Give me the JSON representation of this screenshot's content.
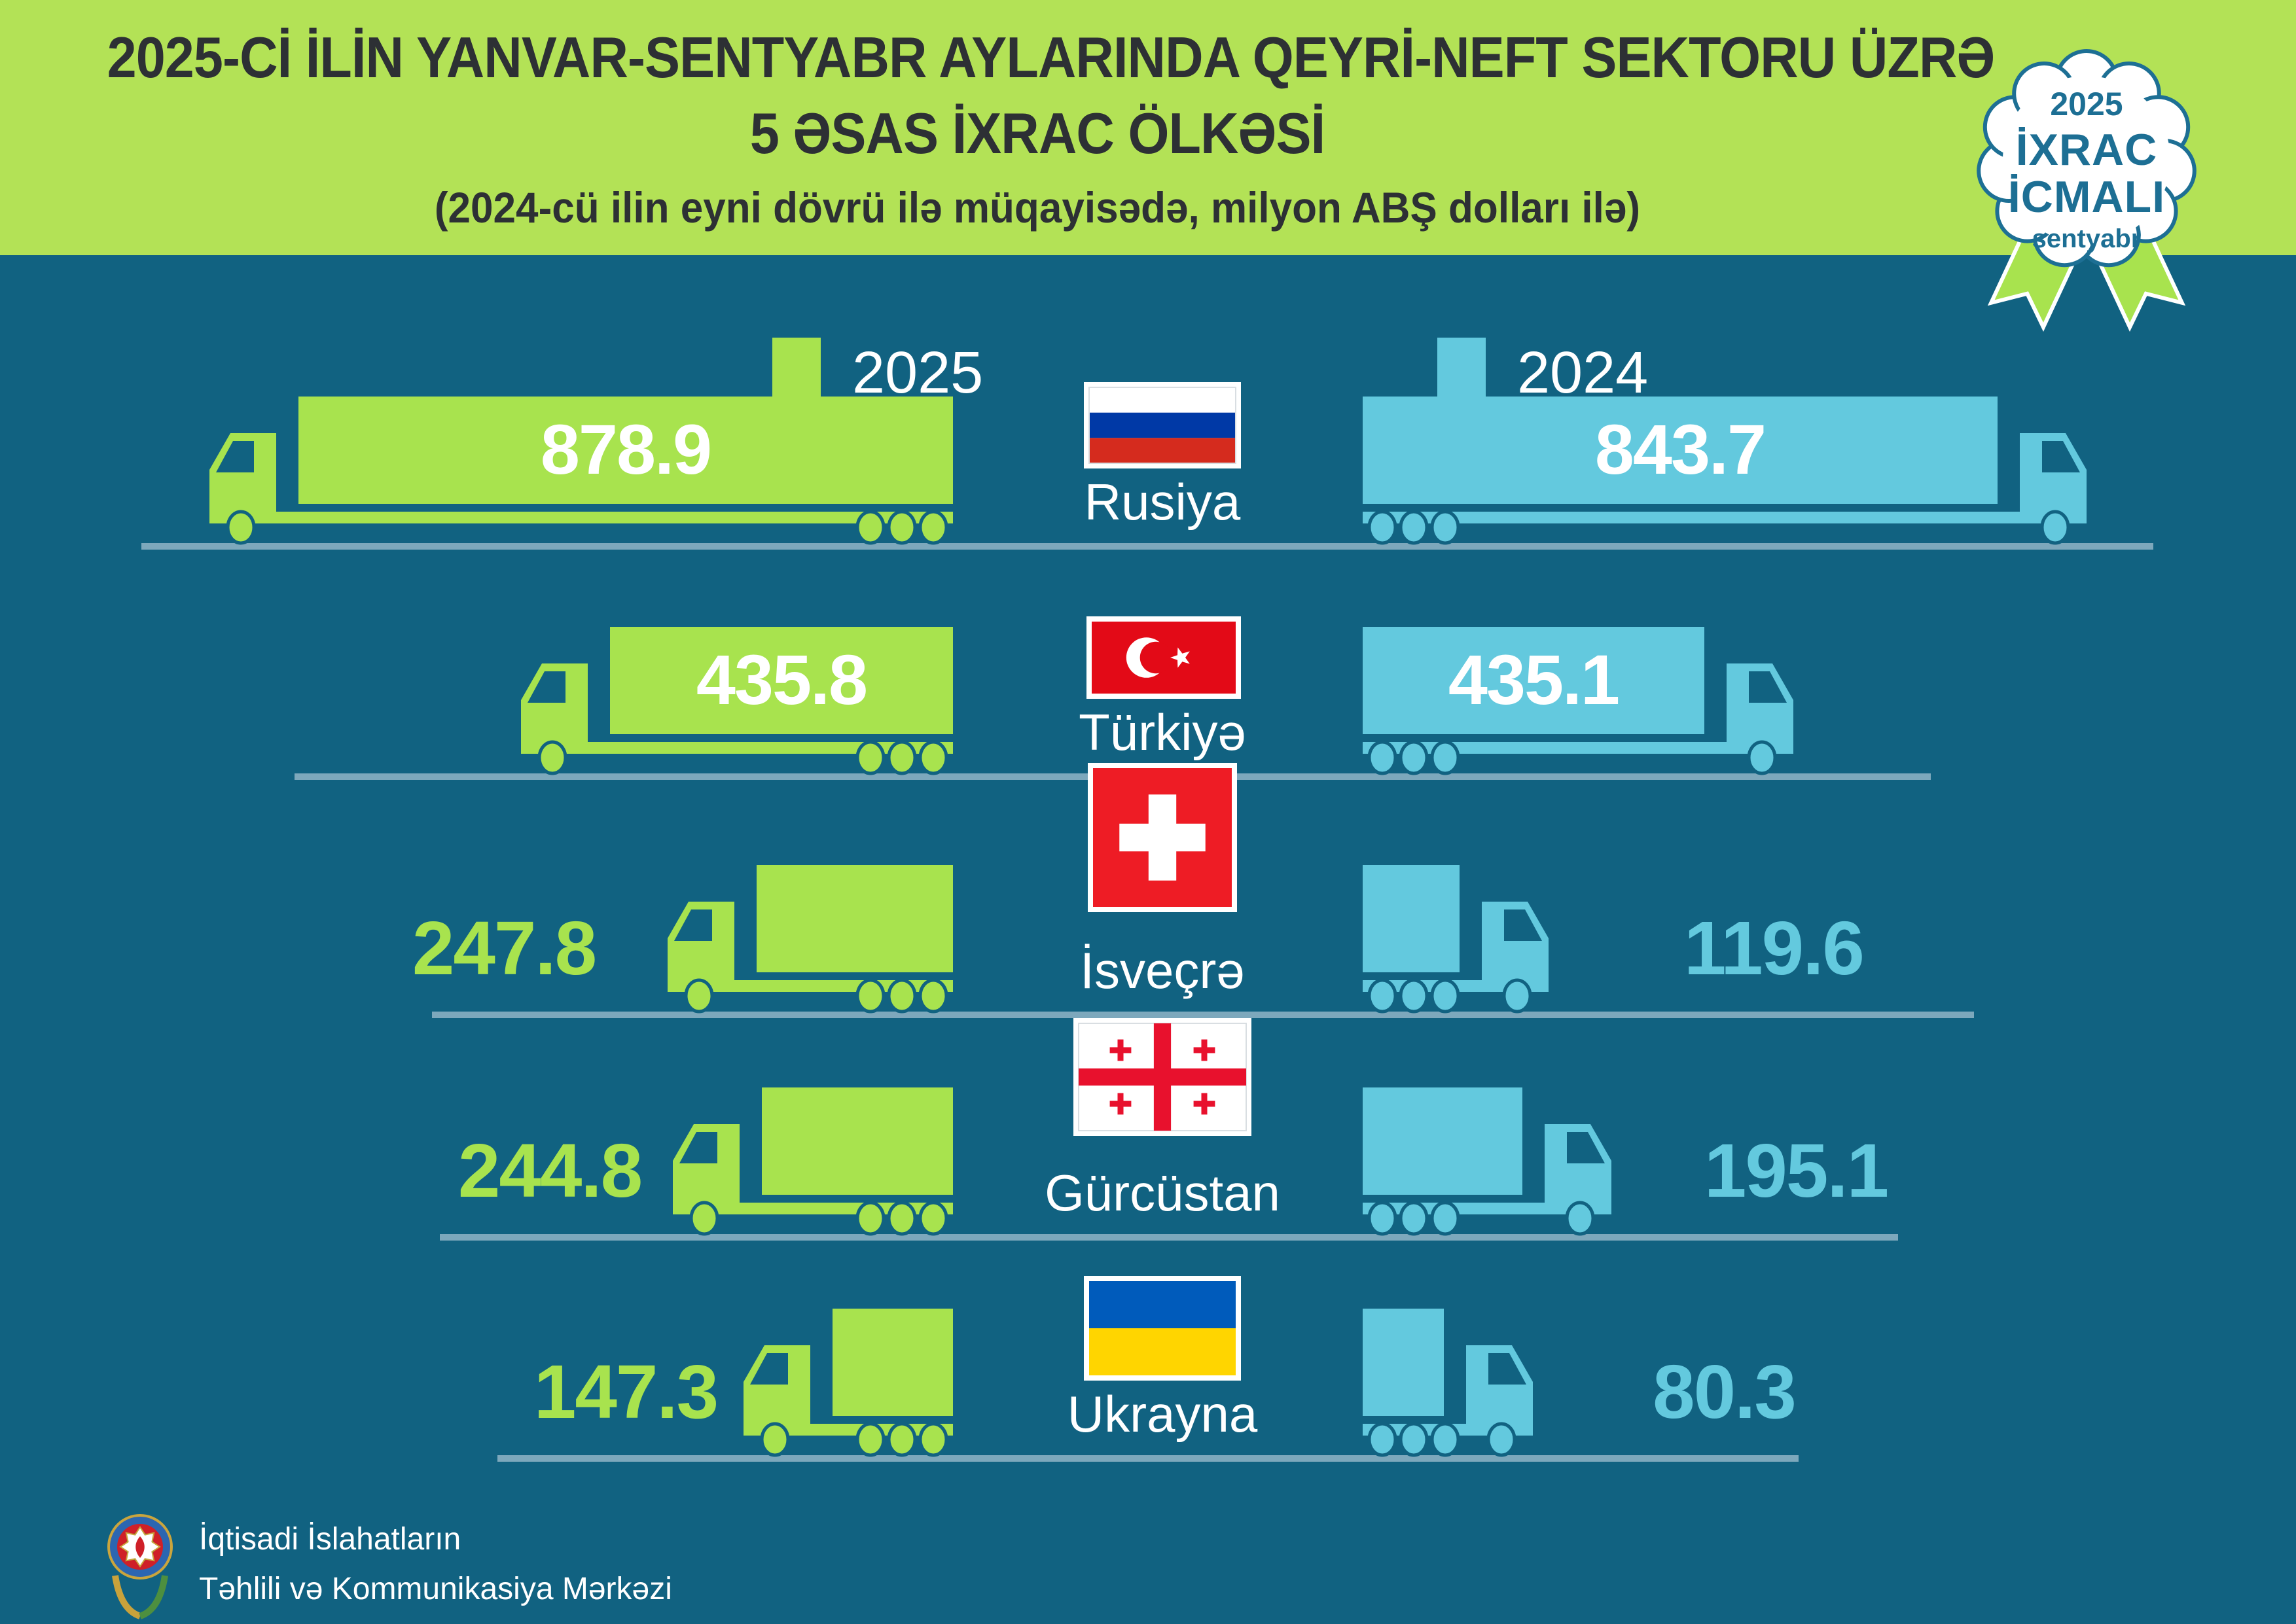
{
  "header": {
    "title_line1": "2025-Cİ İLİN YANVAR-SENTYABR AYLARINDA QEYRİ-NEFT SEKTORU ÜZRƏ",
    "title_line2": "5 ƏSAS İXRAC ÖLKƏSİ",
    "subtitle": "(2024-cü ilin eyni dövrü ilə müqayisədə, milyon ABŞ dolları ilə)"
  },
  "badge": {
    "year": "2025",
    "title_line1": "İXRAC",
    "title_line2": "İCMALI",
    "month": "sentyabr"
  },
  "legend": {
    "items": [
      {
        "label": "2025",
        "color": "#a8e34e"
      },
      {
        "label": "2024",
        "color": "#63c9de"
      }
    ]
  },
  "footer": {
    "org_line1": "İqtisadi İslahatların",
    "org_line2": "Təhlili və Kommunikasiya Mərkəzi"
  },
  "colors": {
    "background": "#116281",
    "header_green": "#b3e256",
    "truck_green": "#a8e34e",
    "truck_blue": "#63c9de",
    "road": "#7da8bc",
    "title_text": "#2d3034",
    "badge_teal": "#1d6f94",
    "value_on_truck": "#ffffff"
  },
  "flags": {
    "russia": {
      "white": "#ffffff",
      "blue": "#0039a6",
      "red": "#d52b1e"
    },
    "turkey": {
      "red": "#e30a17",
      "white": "#ffffff"
    },
    "switzerland": {
      "red": "#ee1c25",
      "white": "#ffffff"
    },
    "georgia": {
      "white": "#ffffff",
      "red": "#e8112d"
    },
    "ukraine": {
      "blue": "#005bbb",
      "yellow": "#ffd500"
    }
  },
  "chart_data": {
    "type": "bar",
    "title": "2025-ci ilin yanvar-sentyabr aylarında qeyri-neft sektoru üzrə 5 əsas ixrac ölkəsi",
    "subtitle": "2024-cü ilin eyni dövrü ilə müqayisədə",
    "unit": "milyon ABŞ dolları",
    "legend_position": "top",
    "grid": false,
    "categories": [
      "Rusiya",
      "Türkiyə",
      "İsveçrə",
      "Gürcüstan",
      "Ukrayna"
    ],
    "series": [
      {
        "name": "2025",
        "color": "#a8e34e",
        "values": [
          878.9,
          435.8,
          247.8,
          244.8,
          147.3
        ]
      },
      {
        "name": "2024",
        "color": "#63c9de",
        "values": [
          843.7,
          435.1,
          119.6,
          195.1,
          80.3
        ]
      }
    ],
    "rows": [
      {
        "country": "Rusiya",
        "flag": "russia",
        "d2025": "878.9",
        "d2024": "843.7"
      },
      {
        "country": "Türkiyə",
        "flag": "turkey",
        "d2025": "435.8",
        "d2024": "435.1"
      },
      {
        "country": "İsveçrə",
        "flag": "switzerland",
        "d2025": "247.8",
        "d2024": "119.6"
      },
      {
        "country": "Gürcüstan",
        "flag": "georgia",
        "d2025": "244.8",
        "d2024": "195.1"
      },
      {
        "country": "Ukrayna",
        "flag": "ukraine",
        "d2025": "147.3",
        "d2024": "80.3"
      }
    ]
  }
}
